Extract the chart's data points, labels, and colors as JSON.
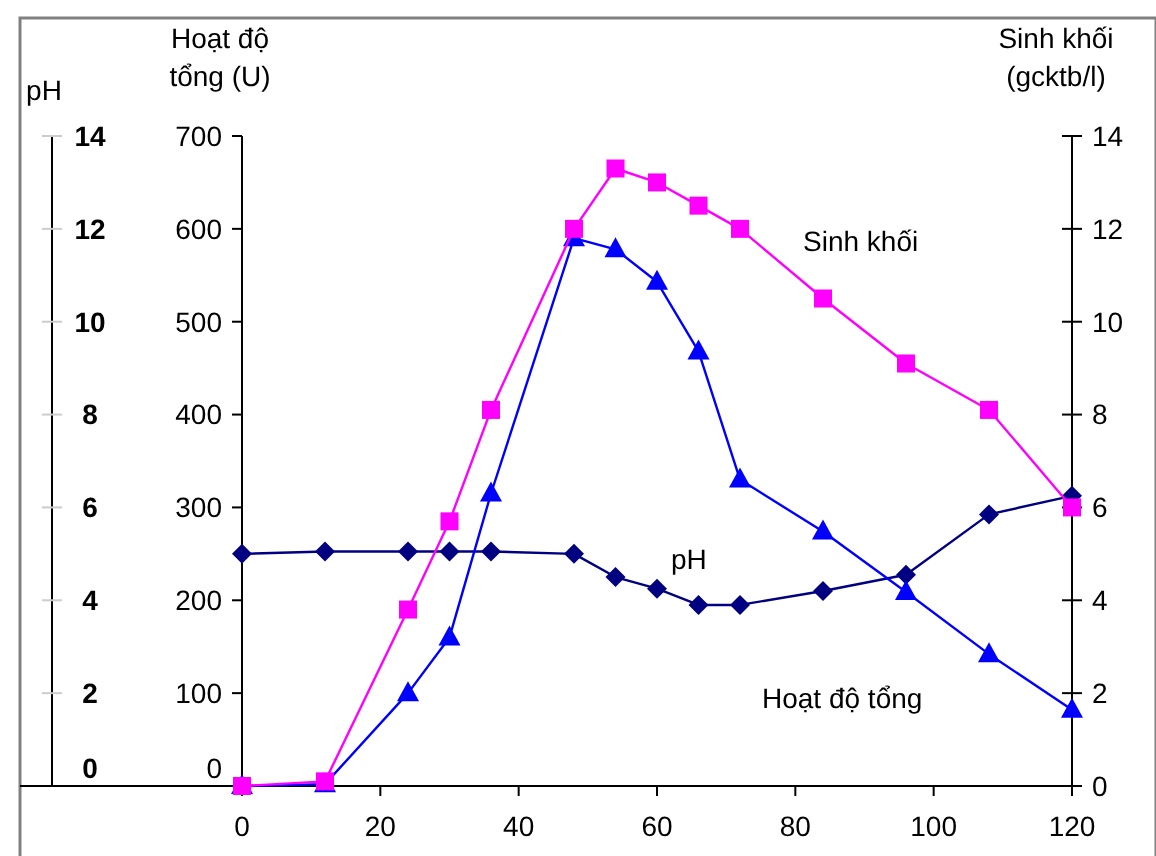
{
  "chart_data": {
    "type": "line",
    "ylabel": "Hoạt độ tổng (U)",
    "y2label": "Sinh khối (gcktb/l)",
    "y3label": "pH",
    "legend": false,
    "grid": false,
    "x": [
      0,
      12,
      24,
      30,
      36,
      48,
      54,
      60,
      66,
      72,
      84,
      96,
      108,
      120
    ],
    "xlim": [
      0,
      120
    ],
    "xticks": [
      0,
      20,
      40,
      60,
      80,
      100,
      120
    ],
    "ylim": [
      0,
      700
    ],
    "yticks": [
      0,
      100,
      200,
      300,
      400,
      500,
      600,
      700
    ],
    "y2lim": [
      0,
      14
    ],
    "y2ticks": [
      0,
      2,
      4,
      6,
      8,
      10,
      12,
      14
    ],
    "y3lim": [
      0,
      14
    ],
    "y3ticks": [
      0,
      2,
      4,
      6,
      8,
      10,
      12,
      14
    ],
    "series": [
      {
        "name": "pH",
        "color": "#000080",
        "marker": "diamond",
        "axis": "y3",
        "values": [
          5.0,
          5.05,
          5.05,
          5.05,
          5.05,
          5.0,
          4.5,
          4.25,
          3.9,
          3.9,
          4.2,
          4.55,
          5.85,
          6.25
        ]
      },
      {
        "name": "Hoạt độ tổng",
        "color": "#0000ff",
        "marker": "triangle",
        "axis": "y",
        "values": [
          0,
          2,
          100,
          160,
          315,
          590,
          578,
          543,
          468,
          330,
          274,
          209,
          142,
          82
        ]
      },
      {
        "name": "Sinh khối",
        "color": "#ff00ff",
        "marker": "square",
        "axis": "y2",
        "values": [
          0,
          0.1,
          3.8,
          5.7,
          8.1,
          12.0,
          13.3,
          13.0,
          12.5,
          12.0,
          10.5,
          9.1,
          8.1,
          6.0
        ]
      }
    ]
  }
}
